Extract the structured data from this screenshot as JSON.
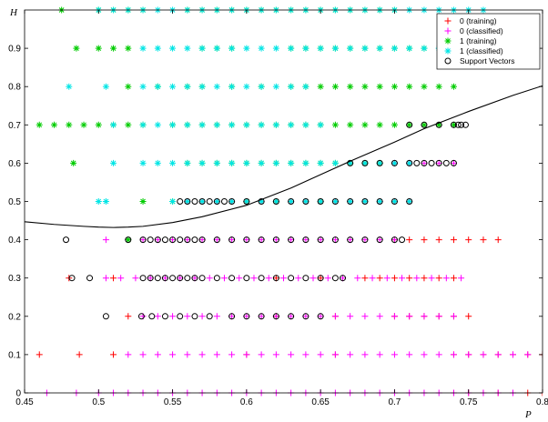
{
  "chart_data": {
    "type": "scatter",
    "title": "",
    "xlabel": "P",
    "ylabel": "H",
    "xlim": [
      0.45,
      0.8
    ],
    "ylim": [
      0,
      1
    ],
    "x_ticks": [
      0.45,
      0.5,
      0.55,
      0.6,
      0.65,
      0.7,
      0.75,
      0.8
    ],
    "x_tick_labels": [
      "0.45",
      "0.5",
      "0.55",
      "0.6",
      "0.65",
      "0.7",
      "0.75",
      "0.8"
    ],
    "y_ticks": [
      0,
      0.1,
      0.2,
      0.3,
      0.4,
      0.5,
      0.6,
      0.7,
      0.8,
      0.9
    ],
    "y_tick_labels": [
      "0",
      "0.1",
      "0.2",
      "0.3",
      "0.4",
      "0.5",
      "0.6",
      "0.7",
      "0.8",
      "0.9"
    ],
    "grid": false,
    "legend_position": "top-right",
    "legend": [
      {
        "label": "0 (training)",
        "marker": "+",
        "color": "#ff0000"
      },
      {
        "label": "0 (classified)",
        "marker": "+",
        "color": "#ff00ff"
      },
      {
        "label": "1 (training)",
        "marker": "*",
        "color": "#00cc00"
      },
      {
        "label": "1 (classified)",
        "marker": "*",
        "color": "#00e5e5"
      },
      {
        "label": "Support Vectors",
        "marker": "o",
        "color": "#000000"
      }
    ],
    "series": [
      {
        "name": "0 (training)",
        "marker": "+",
        "color": "#ff0000",
        "rows": [
          {
            "y": 0.0,
            "x": [
              0.74,
              0.75,
              0.76,
              0.77,
              0.78,
              0.79,
              0.8,
              0.81,
              0.82
            ]
          },
          {
            "y": 0.1,
            "x": [
              0.46,
              0.487,
              0.51,
              0.6,
              0.66,
              0.74,
              0.75,
              0.76,
              0.77,
              0.78,
              0.79,
              0.8
            ]
          },
          {
            "y": 0.2,
            "x": [
              0.52,
              0.62,
              0.66,
              0.7,
              0.71,
              0.72,
              0.73,
              0.74,
              0.75
            ]
          },
          {
            "y": 0.3,
            "x": [
              0.48,
              0.51,
              0.62,
              0.65,
              0.68,
              0.69,
              0.7,
              0.71,
              0.72,
              0.73,
              0.74
            ]
          },
          {
            "y": 0.4,
            "x": [
              0.7,
              0.71,
              0.72,
              0.73,
              0.74,
              0.75,
              0.76,
              0.77
            ]
          }
        ]
      },
      {
        "name": "0 (classified)",
        "marker": "+",
        "color": "#ff00ff",
        "rows": [
          {
            "y": 0.0,
            "x": [
              0.465,
              0.485,
              0.5,
              0.51,
              0.52,
              0.53,
              0.54,
              0.55,
              0.56,
              0.57,
              0.58,
              0.59,
              0.6,
              0.61,
              0.62,
              0.63,
              0.64,
              0.65,
              0.66,
              0.67,
              0.68,
              0.69,
              0.7,
              0.71,
              0.72,
              0.73,
              0.74,
              0.75,
              0.76,
              0.77,
              0.78
            ]
          },
          {
            "y": 0.1,
            "x": [
              0.52,
              0.53,
              0.54,
              0.55,
              0.56,
              0.57,
              0.58,
              0.59,
              0.6,
              0.61,
              0.62,
              0.63,
              0.64,
              0.65,
              0.66,
              0.67,
              0.68,
              0.69,
              0.7,
              0.71,
              0.72,
              0.73,
              0.74,
              0.75,
              0.76,
              0.77,
              0.78,
              0.79
            ]
          },
          {
            "y": 0.2,
            "x": [
              0.53,
              0.54,
              0.55,
              0.56,
              0.57,
              0.58,
              0.59,
              0.6,
              0.61,
              0.62,
              0.63,
              0.64,
              0.65,
              0.66,
              0.67,
              0.68,
              0.69,
              0.7,
              0.71,
              0.72,
              0.73,
              0.74
            ]
          },
          {
            "y": 0.3,
            "x": [
              0.505,
              0.515,
              0.525,
              0.535,
              0.545,
              0.555,
              0.565,
              0.575,
              0.585,
              0.595,
              0.605,
              0.615,
              0.625,
              0.635,
              0.645,
              0.655,
              0.665,
              0.675,
              0.685,
              0.695,
              0.705,
              0.715,
              0.725,
              0.735,
              0.745
            ]
          },
          {
            "y": 0.4,
            "x": [
              0.505,
              0.53,
              0.54,
              0.55,
              0.56,
              0.57,
              0.58,
              0.59,
              0.6,
              0.61,
              0.62,
              0.63,
              0.64,
              0.65,
              0.66,
              0.67,
              0.68,
              0.69,
              0.7
            ]
          },
          {
            "y": 0.5,
            "x": [
              0.56,
              0.57,
              0.58,
              0.59,
              0.6,
              0.61,
              0.62,
              0.63,
              0.64,
              0.65,
              0.66,
              0.67,
              0.68,
              0.69,
              0.7,
              0.71
            ]
          },
          {
            "y": 0.6,
            "x": [
              0.7,
              0.71,
              0.72,
              0.73,
              0.74
            ]
          }
        ]
      },
      {
        "name": "1 (training)",
        "marker": "*",
        "color": "#00cc00",
        "rows": [
          {
            "y": 1.0,
            "x": [
              0.475,
              0.5,
              0.51,
              0.52,
              0.53,
              0.56,
              0.57,
              0.58,
              0.59,
              0.6,
              0.61,
              0.62,
              0.63,
              0.64,
              0.65,
              0.66,
              0.67,
              0.68,
              0.69,
              0.7
            ]
          },
          {
            "y": 0.9,
            "x": [
              0.485,
              0.5,
              0.51,
              0.52,
              0.57,
              0.58,
              0.59,
              0.63,
              0.64,
              0.65,
              0.66,
              0.67,
              0.68,
              0.69,
              0.7,
              0.71,
              0.72
            ]
          },
          {
            "y": 0.8,
            "x": [
              0.52,
              0.54,
              0.56,
              0.57,
              0.59,
              0.61,
              0.63,
              0.64,
              0.65,
              0.66,
              0.67,
              0.68,
              0.69,
              0.7,
              0.71,
              0.72,
              0.73,
              0.74
            ]
          },
          {
            "y": 0.7,
            "x": [
              0.46,
              0.47,
              0.48,
              0.49,
              0.5,
              0.51,
              0.52,
              0.53,
              0.55,
              0.56,
              0.57,
              0.58,
              0.59,
              0.6,
              0.61,
              0.62,
              0.63,
              0.64,
              0.65,
              0.66,
              0.67,
              0.68,
              0.69,
              0.7,
              0.71,
              0.72,
              0.73,
              0.74
            ]
          },
          {
            "y": 0.6,
            "x": [
              0.483,
              0.56,
              0.57,
              0.58,
              0.59,
              0.6,
              0.61,
              0.62,
              0.63,
              0.64,
              0.65,
              0.66,
              0.67,
              0.68,
              0.69
            ]
          },
          {
            "y": 0.5,
            "x": [
              0.53,
              0.55,
              0.6,
              0.62,
              0.65
            ]
          },
          {
            "y": 0.4,
            "x": [
              0.52
            ]
          }
        ]
      },
      {
        "name": "1 (classified)",
        "marker": "*",
        "color": "#00e5e5",
        "rows": [
          {
            "y": 1.0,
            "x": [
              0.5,
              0.51,
              0.52,
              0.53,
              0.54,
              0.55,
              0.56,
              0.57,
              0.58,
              0.59,
              0.6,
              0.61,
              0.62,
              0.63,
              0.64,
              0.65,
              0.66,
              0.67,
              0.68,
              0.69,
              0.7,
              0.71,
              0.72,
              0.73,
              0.74,
              0.75,
              0.76
            ]
          },
          {
            "y": 0.9,
            "x": [
              0.53,
              0.54,
              0.55,
              0.56,
              0.57,
              0.58,
              0.59,
              0.6,
              0.61,
              0.62,
              0.63,
              0.64,
              0.65,
              0.66,
              0.67,
              0.68,
              0.69,
              0.7,
              0.71,
              0.72,
              0.73,
              0.74,
              0.75,
              0.76
            ]
          },
          {
            "y": 0.8,
            "x": [
              0.48,
              0.505,
              0.53,
              0.54,
              0.55,
              0.56,
              0.57,
              0.58,
              0.59,
              0.6,
              0.61,
              0.62,
              0.63,
              0.64
            ]
          },
          {
            "y": 0.7,
            "x": [
              0.51,
              0.53,
              0.54,
              0.55,
              0.56,
              0.57,
              0.58,
              0.59,
              0.6,
              0.61,
              0.62,
              0.63,
              0.64,
              0.65
            ]
          },
          {
            "y": 0.6,
            "x": [
              0.51,
              0.53,
              0.54,
              0.55,
              0.56,
              0.57,
              0.58,
              0.59,
              0.6,
              0.61,
              0.62,
              0.63,
              0.64,
              0.65,
              0.66,
              0.67,
              0.68,
              0.69,
              0.7,
              0.71
            ]
          },
          {
            "y": 0.5,
            "x": [
              0.5,
              0.505,
              0.55,
              0.56,
              0.57,
              0.58,
              0.59,
              0.6,
              0.61,
              0.62,
              0.63,
              0.64,
              0.65,
              0.66,
              0.67,
              0.68,
              0.69,
              0.7,
              0.71
            ]
          }
        ]
      },
      {
        "name": "Support Vectors",
        "marker": "o",
        "color": "#000000",
        "rows": [
          {
            "y": 0.0,
            "x": [
              0.815,
              0.82
            ]
          },
          {
            "y": 0.2,
            "x": [
              0.505,
              0.529,
              0.536,
              0.545,
              0.555,
              0.565,
              0.575,
              0.59,
              0.6,
              0.61,
              0.62,
              0.63,
              0.64,
              0.65
            ]
          },
          {
            "y": 0.3,
            "x": [
              0.482,
              0.494,
              0.53,
              0.535,
              0.54,
              0.545,
              0.55,
              0.555,
              0.56,
              0.565,
              0.57,
              0.58,
              0.59,
              0.6,
              0.61,
              0.62,
              0.63,
              0.64,
              0.65,
              0.66,
              0.665
            ]
          },
          {
            "y": 0.4,
            "x": [
              0.478,
              0.52,
              0.53,
              0.535,
              0.54,
              0.545,
              0.55,
              0.555,
              0.56,
              0.565,
              0.57,
              0.58,
              0.59,
              0.6,
              0.61,
              0.62,
              0.63,
              0.64,
              0.65,
              0.66,
              0.67,
              0.68,
              0.69,
              0.7,
              0.705
            ]
          },
          {
            "y": 0.5,
            "x": [
              0.555,
              0.56,
              0.565,
              0.57,
              0.575,
              0.58,
              0.585,
              0.59,
              0.6,
              0.61,
              0.62,
              0.63,
              0.64,
              0.65,
              0.66,
              0.67,
              0.68,
              0.69,
              0.7,
              0.71
            ]
          },
          {
            "y": 0.6,
            "x": [
              0.67,
              0.68,
              0.69,
              0.7,
              0.71,
              0.715,
              0.72,
              0.725,
              0.73,
              0.735,
              0.74
            ]
          },
          {
            "y": 0.7,
            "x": [
              0.71,
              0.72,
              0.73,
              0.74,
              0.743,
              0.745,
              0.748
            ]
          }
        ]
      }
    ],
    "decision_boundary": {
      "color": "#000000",
      "x": [
        0.45,
        0.47,
        0.49,
        0.5,
        0.51,
        0.52,
        0.53,
        0.55,
        0.57,
        0.6,
        0.63,
        0.65,
        0.67,
        0.7,
        0.72,
        0.75,
        0.78,
        0.8
      ],
      "y": [
        0.447,
        0.44,
        0.435,
        0.433,
        0.432,
        0.433,
        0.435,
        0.445,
        0.46,
        0.49,
        0.535,
        0.57,
        0.605,
        0.655,
        0.69,
        0.735,
        0.777,
        0.802
      ]
    }
  }
}
